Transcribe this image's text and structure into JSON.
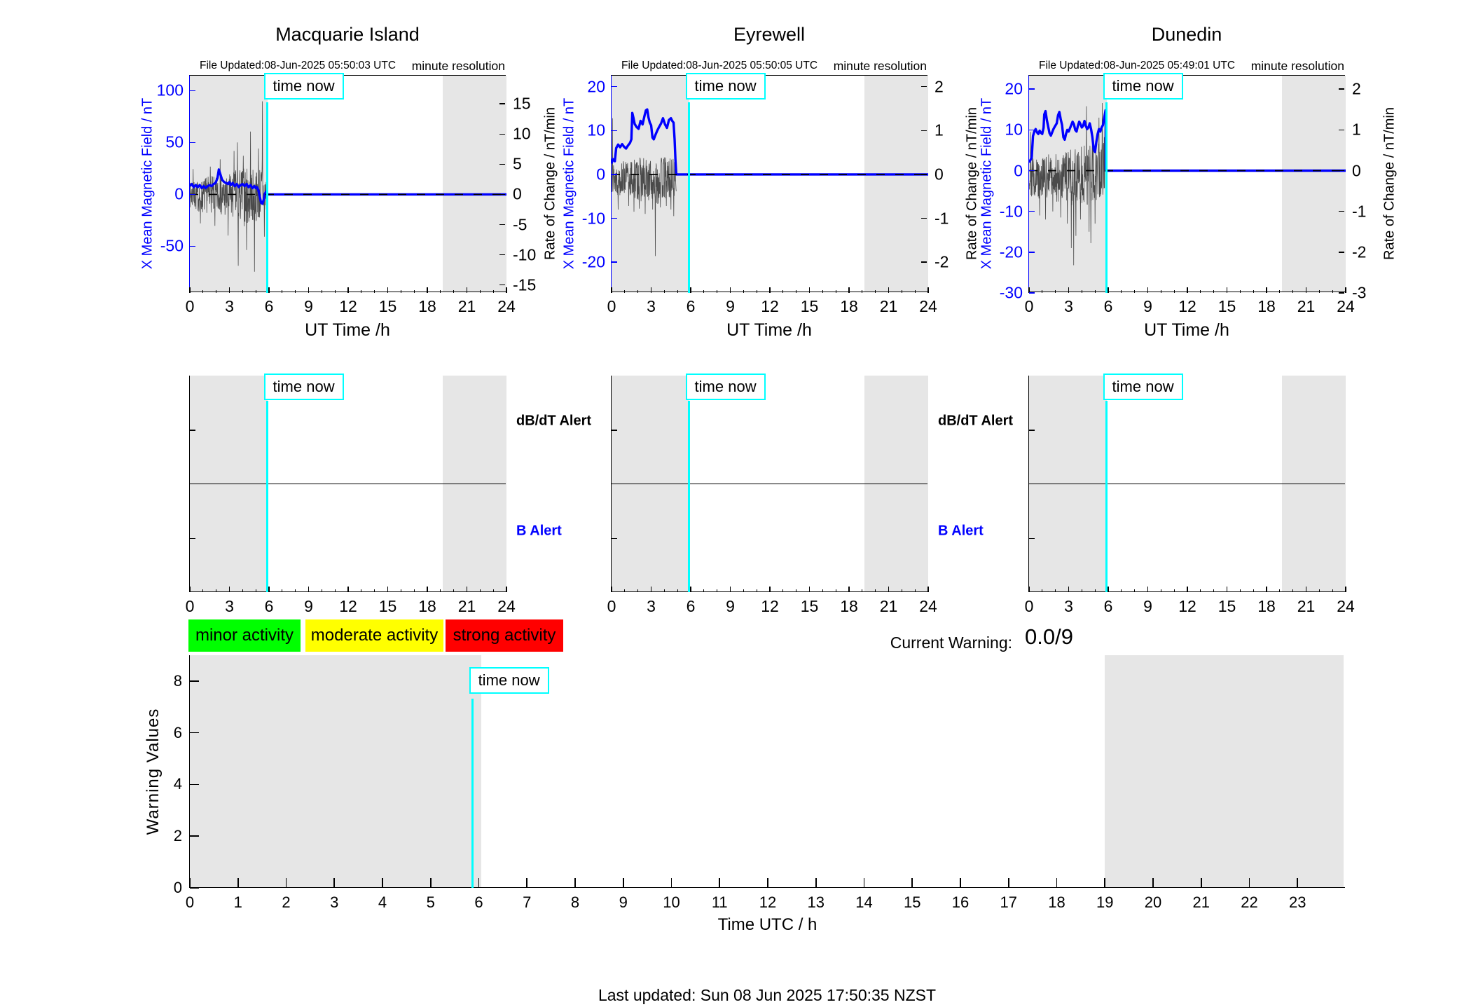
{
  "page": {
    "time_now_label": "time now",
    "current_warning_label": "Current Warning:",
    "current_warning_value": "0.0/9",
    "footer": "Last updated: Sun 08 Jun 2025 17:50:35 NZST"
  },
  "colors": {
    "field_line": "#0000ff",
    "noise_line": "#4a4a4a",
    "time_now": "#00ffff",
    "night_shade": "#e6e6e6",
    "zero_dash": "#000000",
    "minor_activity": "#00ff00",
    "moderate_activity": "#ffff00",
    "strong_activity": "#ff0000"
  },
  "legend": [
    {
      "label": "minor activity",
      "color": "#00ff00"
    },
    {
      "label": "moderate activity",
      "color": "#ffff00"
    },
    {
      "label": "strong activity",
      "color": "#ff0000"
    }
  ],
  "chart_data": {
    "time_now_hour": 5.87,
    "night_shade_hours": {
      "magnetometer_panels": [
        [
          0,
          5.87
        ],
        [
          19.17,
          24
        ]
      ],
      "warning_panel": [
        [
          0,
          6.05
        ],
        [
          19,
          23.95
        ]
      ]
    },
    "magnetometers": [
      {
        "type": "line",
        "title": "Macquarie Island",
        "file_updated": "File Updated:08-Jun-2025 05:50:03 UTC",
        "resolution_note": "minute resolution",
        "left_axis": {
          "label": "X Mean Magnetic Field / nT",
          "range": [
            -95,
            114.5
          ],
          "ticks": [
            -50,
            0,
            50,
            100
          ]
        },
        "right_axis": {
          "label": "Rate of Change / nT/min",
          "range": [
            -16.3,
            19.65
          ],
          "ticks": [
            -15,
            -10,
            -5,
            0,
            5,
            10,
            15
          ]
        },
        "x_axis": {
          "label": "UT Time /h",
          "range": [
            0,
            24
          ],
          "major_ticks": [
            0,
            3,
            6,
            9,
            12,
            15,
            18,
            21,
            24
          ],
          "minor_step": 1
        },
        "data_end_hour": 5.84,
        "noise_seed": 7,
        "field_points": [
          [
            0,
            8
          ],
          [
            0.15,
            10
          ],
          [
            0.3,
            7
          ],
          [
            0.45,
            9
          ],
          [
            0.6,
            7
          ],
          [
            0.75,
            9
          ],
          [
            0.9,
            6
          ],
          [
            1.05,
            8
          ],
          [
            1.2,
            6
          ],
          [
            1.35,
            8
          ],
          [
            1.5,
            9
          ],
          [
            1.65,
            8
          ],
          [
            1.8,
            10
          ],
          [
            1.95,
            11
          ],
          [
            2.1,
            16
          ],
          [
            2.2,
            24
          ],
          [
            2.3,
            20
          ],
          [
            2.45,
            14
          ],
          [
            2.6,
            12
          ],
          [
            2.75,
            11
          ],
          [
            2.9,
            10
          ],
          [
            3.0,
            12
          ],
          [
            3.1,
            9
          ],
          [
            3.25,
            11
          ],
          [
            3.4,
            8
          ],
          [
            3.55,
            10
          ],
          [
            3.7,
            7
          ],
          [
            3.85,
            9
          ],
          [
            4.0,
            10
          ],
          [
            4.15,
            8
          ],
          [
            4.3,
            10
          ],
          [
            4.45,
            7
          ],
          [
            4.6,
            9
          ],
          [
            4.75,
            6
          ],
          [
            4.9,
            8
          ],
          [
            5.0,
            6
          ],
          [
            5.1,
            7
          ],
          [
            5.2,
            4
          ],
          [
            5.3,
            -2
          ],
          [
            5.4,
            -8
          ],
          [
            5.5,
            -9
          ],
          [
            5.6,
            -5
          ],
          [
            5.7,
            1
          ],
          [
            5.8,
            3
          ],
          [
            5.84,
            1
          ]
        ],
        "roc_envelope": [
          [
            0,
            -2.2,
            2.0
          ],
          [
            0.5,
            -2.8,
            2.2
          ],
          [
            1,
            -3.2,
            2.6
          ],
          [
            1.5,
            -3.0,
            3.2
          ],
          [
            2,
            -3.4,
            2.8
          ],
          [
            2.5,
            -3.8,
            3.0
          ],
          [
            3,
            -4.2,
            3.4
          ],
          [
            3.5,
            -4.6,
            4.2
          ],
          [
            4,
            -5.2,
            4.6
          ],
          [
            4.5,
            -5.6,
            4.4
          ],
          [
            5,
            -4.6,
            4.0
          ],
          [
            5.4,
            -4.2,
            5.0
          ],
          [
            5.84,
            -3.2,
            3.0
          ]
        ],
        "roc_spikes": [
          [
            0.25,
            4.2
          ],
          [
            0.8,
            -4.8
          ],
          [
            1.55,
            4.6
          ],
          [
            1.9,
            -5.2
          ],
          [
            2.3,
            5.8
          ],
          [
            2.9,
            -6.8
          ],
          [
            3.35,
            7.2
          ],
          [
            3.6,
            8.6
          ],
          [
            3.67,
            -11.8
          ],
          [
            4.05,
            6.4
          ],
          [
            4.3,
            -9.2
          ],
          [
            4.6,
            10.4
          ],
          [
            4.9,
            -12.8
          ],
          [
            5.2,
            7.6
          ],
          [
            5.5,
            15.4
          ],
          [
            5.65,
            -7.0
          ]
        ]
      },
      {
        "type": "line",
        "title": "Eyrewell",
        "file_updated": "File Updated:08-Jun-2025 05:50:05 UTC",
        "resolution_note": "minute resolution",
        "left_axis": {
          "label": "X Mean Magnetic Field / nT",
          "range": [
            -27,
            22.5
          ],
          "ticks": [
            -20,
            -10,
            0,
            10,
            20
          ]
        },
        "right_axis": {
          "label": "Rate of Change / nT/min",
          "range": [
            -2.7,
            2.25
          ],
          "ticks": [
            -2,
            -1,
            0,
            1,
            2
          ]
        },
        "x_axis": {
          "label": "UT Time /h",
          "range": [
            0,
            24
          ],
          "major_ticks": [
            0,
            3,
            6,
            9,
            12,
            15,
            18,
            21,
            24
          ],
          "minor_step": 1
        },
        "data_end_hour": 4.9,
        "noise_seed": 13,
        "field_points": [
          [
            0,
            2.5
          ],
          [
            0.1,
            3.5
          ],
          [
            0.25,
            3
          ],
          [
            0.35,
            6
          ],
          [
            0.5,
            6.8
          ],
          [
            0.65,
            6.2
          ],
          [
            0.8,
            6.9
          ],
          [
            0.95,
            6.3
          ],
          [
            1.1,
            5.9
          ],
          [
            1.25,
            6.6
          ],
          [
            1.4,
            7.2
          ],
          [
            1.5,
            8
          ],
          [
            1.57,
            14
          ],
          [
            1.65,
            13
          ],
          [
            1.75,
            11.5
          ],
          [
            1.9,
            10.8
          ],
          [
            2.05,
            10.4
          ],
          [
            2.2,
            12.2
          ],
          [
            2.35,
            11.4
          ],
          [
            2.5,
            13.4
          ],
          [
            2.6,
            14.6
          ],
          [
            2.7,
            14.8
          ],
          [
            2.8,
            13
          ],
          [
            2.9,
            11.8
          ],
          [
            3.0,
            11.2
          ],
          [
            3.1,
            8.4
          ],
          [
            3.2,
            8.0
          ],
          [
            3.3,
            8.8
          ],
          [
            3.45,
            9.9
          ],
          [
            3.6,
            10.8
          ],
          [
            3.75,
            11.6
          ],
          [
            3.9,
            12.8
          ],
          [
            4.05,
            11.4
          ],
          [
            4.2,
            10.6
          ],
          [
            4.35,
            12.4
          ],
          [
            4.5,
            12.8
          ],
          [
            4.6,
            12.2
          ],
          [
            4.7,
            11.8
          ],
          [
            4.78,
            8
          ],
          [
            4.85,
            3
          ],
          [
            4.9,
            0.3
          ]
        ],
        "roc_envelope": [
          [
            0,
            -0.45,
            0.3
          ],
          [
            0.5,
            -0.5,
            0.32
          ],
          [
            1,
            -0.45,
            0.3
          ],
          [
            1.5,
            -0.55,
            0.35
          ],
          [
            2,
            -0.6,
            0.4
          ],
          [
            2.5,
            -0.65,
            0.38
          ],
          [
            3,
            -0.6,
            0.36
          ],
          [
            3.5,
            -0.7,
            0.4
          ],
          [
            4,
            -0.6,
            0.42
          ],
          [
            4.5,
            -0.65,
            0.4
          ],
          [
            4.9,
            -0.5,
            0.3
          ]
        ],
        "roc_spikes": [
          [
            0.06,
            1.28
          ],
          [
            0.5,
            -0.8
          ],
          [
            1.3,
            -0.72
          ],
          [
            1.7,
            -0.85
          ],
          [
            2.1,
            -0.78
          ],
          [
            2.55,
            -0.9
          ],
          [
            3.12,
            -0.8
          ],
          [
            3.32,
            -1.86
          ],
          [
            3.7,
            -0.75
          ],
          [
            4.15,
            -0.72
          ],
          [
            4.5,
            -0.8
          ],
          [
            4.72,
            -0.95
          ]
        ]
      },
      {
        "type": "line",
        "title": "Dunedin",
        "file_updated": "File Updated:08-Jun-2025 05:49:01 UTC",
        "resolution_note": "minute resolution",
        "left_axis": {
          "label": "X Mean Magnetic Field / nT",
          "range": [
            -30,
            23.3
          ],
          "ticks": [
            -30,
            -20,
            -10,
            0,
            10,
            20
          ]
        },
        "right_axis": {
          "label": "Rate of Change / nT/min",
          "range": [
            -3,
            2.33
          ],
          "ticks": [
            -3,
            -2,
            -1,
            0,
            1,
            2
          ]
        },
        "x_axis": {
          "label": "UT Time /h",
          "range": [
            0,
            24
          ],
          "major_ticks": [
            0,
            3,
            6,
            9,
            12,
            15,
            18,
            21,
            24
          ],
          "minor_step": 1
        },
        "data_end_hour": 5.82,
        "noise_seed": 29,
        "field_points": [
          [
            0,
            2
          ],
          [
            0.1,
            2.6
          ],
          [
            0.2,
            3.2
          ],
          [
            0.3,
            8.5
          ],
          [
            0.4,
            9.6
          ],
          [
            0.5,
            10.2
          ],
          [
            0.6,
            9.4
          ],
          [
            0.7,
            9.0
          ],
          [
            0.8,
            9.8
          ],
          [
            0.9,
            9.3
          ],
          [
            1.0,
            9.0
          ],
          [
            1.1,
            10.5
          ],
          [
            1.15,
            13.8
          ],
          [
            1.25,
            14.6
          ],
          [
            1.35,
            12.4
          ],
          [
            1.45,
            10.8
          ],
          [
            1.55,
            9.2
          ],
          [
            1.65,
            8.6
          ],
          [
            1.75,
            9.4
          ],
          [
            1.85,
            10.2
          ],
          [
            1.95,
            10.8
          ],
          [
            2.1,
            11.6
          ],
          [
            2.2,
            13.6
          ],
          [
            2.3,
            14.4
          ],
          [
            2.4,
            12.6
          ],
          [
            2.5,
            11.2
          ],
          [
            2.6,
            8.2
          ],
          [
            2.7,
            7.6
          ],
          [
            2.8,
            9.0
          ],
          [
            2.9,
            10.0
          ],
          [
            3.0,
            9.6
          ],
          [
            3.1,
            10.4
          ],
          [
            3.2,
            11.2
          ],
          [
            3.3,
            12.0
          ],
          [
            3.4,
            11.4
          ],
          [
            3.5,
            10.0
          ],
          [
            3.6,
            9.6
          ],
          [
            3.7,
            11.0
          ],
          [
            3.8,
            12.0
          ],
          [
            3.9,
            11.4
          ],
          [
            4.0,
            10.6
          ],
          [
            4.1,
            11.0
          ],
          [
            4.2,
            12.2
          ],
          [
            4.3,
            11.0
          ],
          [
            4.4,
            10.2
          ],
          [
            4.5,
            10.6
          ],
          [
            4.6,
            11.6
          ],
          [
            4.7,
            10.2
          ],
          [
            4.8,
            8.2
          ],
          [
            4.9,
            5.2
          ],
          [
            5.0,
            4.6
          ],
          [
            5.1,
            7.0
          ],
          [
            5.2,
            9.0
          ],
          [
            5.3,
            10.2
          ],
          [
            5.4,
            9.6
          ],
          [
            5.5,
            10.6
          ],
          [
            5.6,
            11.2
          ],
          [
            5.7,
            13.0
          ],
          [
            5.8,
            14.8
          ],
          [
            5.82,
            14.5
          ]
        ],
        "roc_envelope": [
          [
            0,
            -0.6,
            0.35
          ],
          [
            0.5,
            -0.7,
            0.4
          ],
          [
            1,
            -0.75,
            0.42
          ],
          [
            1.5,
            -0.7,
            0.4
          ],
          [
            2,
            -0.75,
            0.45
          ],
          [
            2.5,
            -0.8,
            0.42
          ],
          [
            3,
            -0.85,
            0.5
          ],
          [
            3.5,
            -0.9,
            0.55
          ],
          [
            4,
            -0.8,
            0.6
          ],
          [
            4.5,
            -0.85,
            0.7
          ],
          [
            5,
            -0.8,
            0.75
          ],
          [
            5.5,
            -0.7,
            0.9
          ],
          [
            5.82,
            -0.6,
            0.8
          ]
        ],
        "roc_spikes": [
          [
            0.12,
            0.95
          ],
          [
            0.8,
            -1.1
          ],
          [
            1.25,
            -1.2
          ],
          [
            1.8,
            -1.0
          ],
          [
            2.4,
            -1.15
          ],
          [
            2.9,
            -1.3
          ],
          [
            3.2,
            -1.9
          ],
          [
            3.38,
            -2.32
          ],
          [
            3.55,
            -1.6
          ],
          [
            3.9,
            -1.2
          ],
          [
            4.35,
            1.58
          ],
          [
            4.55,
            -1.5
          ],
          [
            4.68,
            -1.78
          ],
          [
            5.0,
            -1.3
          ],
          [
            5.3,
            1.3
          ],
          [
            5.55,
            1.66
          ],
          [
            5.75,
            1.45
          ]
        ]
      }
    ],
    "alert_panels": {
      "dbdt_label": "dB/dT Alert",
      "b_label": "B Alert",
      "x_axis": {
        "range": [
          0,
          24
        ],
        "major_ticks": [
          0,
          3,
          6,
          9,
          12,
          15,
          18,
          21,
          24
        ],
        "minor_step": 1
      },
      "panels_with_labels": [
        true,
        true,
        false
      ],
      "alerts_plotted": []
    },
    "warning_chart": {
      "type": "line",
      "ylabel": "Warning Values",
      "xlabel": "Time UTC / h",
      "y_range": [
        0,
        9
      ],
      "y_ticks": [
        0,
        2,
        4,
        6,
        8
      ],
      "x_range": [
        0,
        24
      ],
      "x_ticks": [
        0,
        1,
        2,
        3,
        4,
        5,
        6,
        7,
        8,
        9,
        10,
        11,
        12,
        13,
        14,
        15,
        16,
        17,
        18,
        19,
        20,
        21,
        22,
        23
      ],
      "values": []
    }
  }
}
